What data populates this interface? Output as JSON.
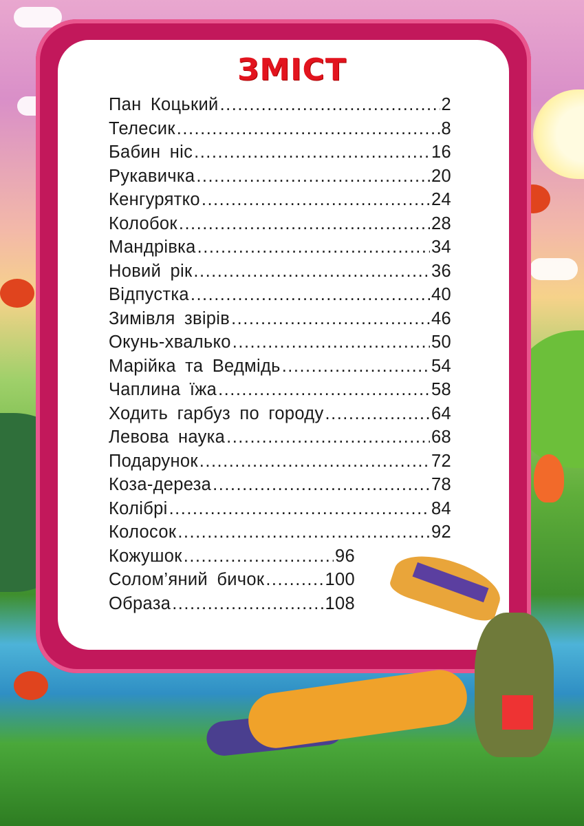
{
  "title": "ЗМІСТ",
  "colors": {
    "title": "#e2141e",
    "frame": "#c2185b",
    "panel": "#ffffff",
    "text": "#1a1a1a"
  },
  "entries": [
    {
      "title": "Пан Коцький",
      "page": "2"
    },
    {
      "title": "Телесик",
      "page": "8"
    },
    {
      "title": "Бабин ніс",
      "page": "16"
    },
    {
      "title": "Рукавичка",
      "page": "20"
    },
    {
      "title": "Кенгурятко",
      "page": "24"
    },
    {
      "title": "Колобок",
      "page": "28"
    },
    {
      "title": "Мандрівка",
      "page": "34"
    },
    {
      "title": "Новий рік",
      "page": "36"
    },
    {
      "title": "Відпустка",
      "page": "40"
    },
    {
      "title": "Зимівля звірів",
      "page": "46"
    },
    {
      "title": "Окунь-хвалько",
      "page": "50"
    },
    {
      "title": "Марійка та Ведмідь",
      "page": "54"
    },
    {
      "title": "Чаплина їжа",
      "page": "58"
    },
    {
      "title": "Ходить гарбуз по городу",
      "page": "64"
    },
    {
      "title": "Левова наука",
      "page": "68"
    },
    {
      "title": "Подарунок",
      "page": "72"
    },
    {
      "title": "Коза-дереза",
      "page": "78"
    },
    {
      "title": "Колібрі",
      "page": "84"
    },
    {
      "title": "Колосок",
      "page": "92"
    },
    {
      "title": "Кожушок",
      "page": "96"
    },
    {
      "title": "Солом’яний бичок",
      "page": "100"
    },
    {
      "title": "Образа",
      "page": "108"
    }
  ]
}
